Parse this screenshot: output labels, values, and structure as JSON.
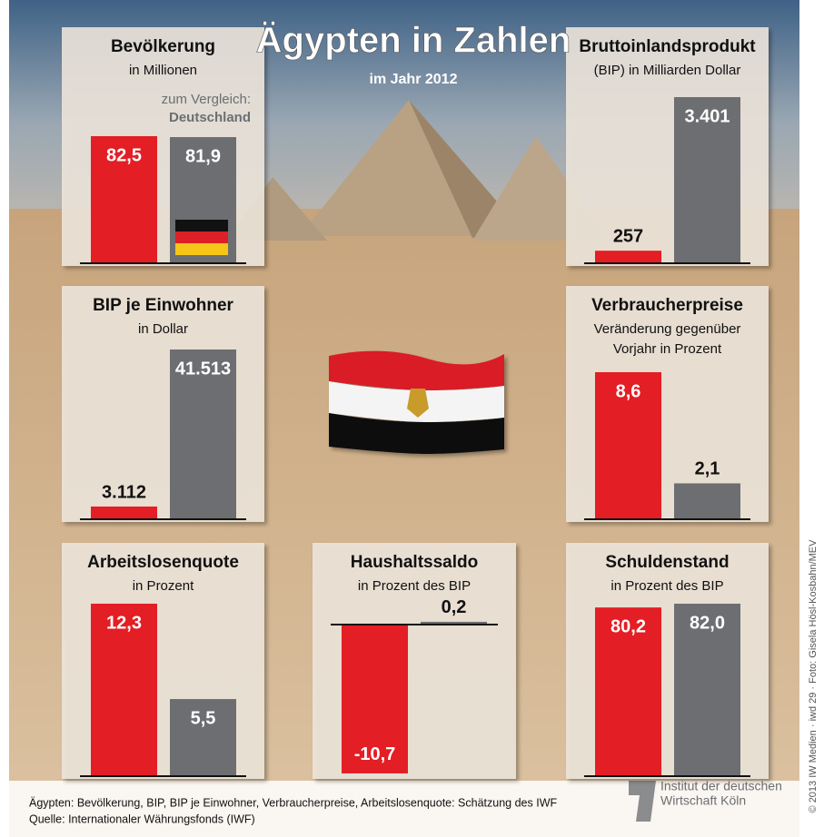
{
  "header": {
    "title": "Ägypten in Zahlen",
    "subtitle": "im Jahr 2012"
  },
  "chart_data": [
    {
      "type": "bar",
      "title": "Bevölkerung",
      "subtitle": [
        "in Millionen"
      ],
      "note": [
        "zum Vergleich:",
        "Deutschland"
      ],
      "values": [
        82.5,
        81.9
      ],
      "value_labels": [
        "82,5",
        "81,9"
      ],
      "colors": [
        "#e31e24",
        "#6d6e71"
      ]
    },
    {
      "type": "bar",
      "title": "Bruttoinlandsprodukt",
      "subtitle": [
        "(BIP) in Milliarden Dollar"
      ],
      "values": [
        257,
        3401
      ],
      "value_labels": [
        "257",
        "3.401"
      ],
      "colors": [
        "#e31e24",
        "#6d6e71"
      ]
    },
    {
      "type": "bar",
      "title": "BIP je Einwohner",
      "subtitle": [
        "in Dollar"
      ],
      "values": [
        3112,
        41513
      ],
      "value_labels": [
        "3.112",
        "41.513"
      ],
      "colors": [
        "#e31e24",
        "#6d6e71"
      ]
    },
    {
      "type": "bar",
      "title": "Verbraucherpreise",
      "subtitle": [
        "Veränderung gegenüber",
        "Vorjahr in Prozent"
      ],
      "values": [
        8.6,
        2.1
      ],
      "value_labels": [
        "8,6",
        "2,1"
      ],
      "colors": [
        "#e31e24",
        "#6d6e71"
      ]
    },
    {
      "type": "bar",
      "title": "Arbeitslosenquote",
      "subtitle": [
        "in Prozent"
      ],
      "values": [
        12.3,
        5.5
      ],
      "value_labels": [
        "12,3",
        "5,5"
      ],
      "colors": [
        "#e31e24",
        "#6d6e71"
      ]
    },
    {
      "type": "bar",
      "title": "Haushaltssaldo",
      "subtitle": [
        "in Prozent des BIP"
      ],
      "values": [
        -10.7,
        0.2
      ],
      "value_labels": [
        "-10,7",
        "0,2"
      ],
      "colors": [
        "#e31e24",
        "#6d6e71"
      ]
    },
    {
      "type": "bar",
      "title": "Schuldenstand",
      "subtitle": [
        "in Prozent des BIP"
      ],
      "values": [
        80.2,
        82.0
      ],
      "value_labels": [
        "80,2",
        "82,0"
      ],
      "colors": [
        "#e31e24",
        "#6d6e71"
      ]
    }
  ],
  "footer": {
    "notes": [
      "Ägypten: Bevölkerung, BIP, BIP je Einwohner, Verbraucherpreise, Arbeitslosenquote: Schätzung des IWF",
      "Quelle: Internationaler Währungsfonds (IWF)"
    ],
    "logo": [
      "Institut der deutschen",
      "Wirtschaft Köln"
    ],
    "credit": "© 2013 IW Medien · iwd 29 · Foto: Gisela Hösl-Kosbahn/MEV"
  }
}
